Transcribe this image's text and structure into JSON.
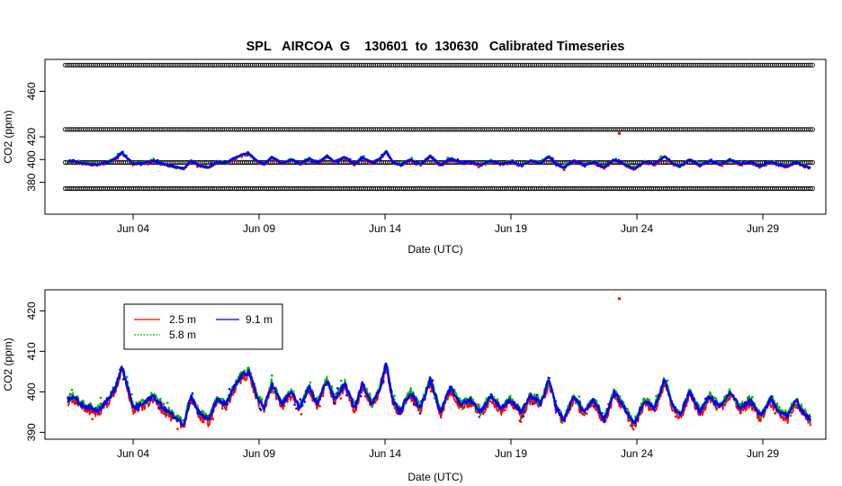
{
  "colors": {
    "reference_points": "#000000",
    "series_2_5m": "#ff0000",
    "series_5_8m": "#00bb00",
    "series_9_1m": "#0000ff",
    "frame": "#000000",
    "background": "#ffffff"
  },
  "chart_data": [
    {
      "type": "scatter",
      "title": "SPL   AIRCOA  G    130601  to  130630   Calibrated Timeseries",
      "xlabel": "Date (UTC)",
      "ylabel": "CO2 (ppm)",
      "xlim_day_of_june": [
        0.5,
        31.5
      ],
      "ylim": [
        352,
        488
      ],
      "x_ticks": [
        {
          "day": 4,
          "label": "Jun 04"
        },
        {
          "day": 9,
          "label": "Jun 09"
        },
        {
          "day": 14,
          "label": "Jun 14"
        },
        {
          "day": 19,
          "label": "Jun 19"
        },
        {
          "day": 24,
          "label": "Jun 24"
        },
        {
          "day": 29,
          "label": "Jun 29"
        }
      ],
      "y_ticks": [
        380,
        400,
        420,
        460
      ],
      "y_tick_labels": [
        "380",
        "400",
        "420",
        "460"
      ],
      "reference_levels_ppm": [
        374.5,
        397.5,
        426.5,
        483
      ],
      "reference_range_days": [
        1.3,
        31.0
      ],
      "ambient_series": [
        "2.5 m",
        "5.8 m",
        "9.1 m"
      ],
      "outliers": [
        {
          "day": 23.3,
          "value": 423
        }
      ]
    },
    {
      "type": "scatter",
      "title": "",
      "xlabel": "Date (UTC)",
      "ylabel": "CO2 (ppm)",
      "xlim_day_of_june": [
        0.5,
        31.5
      ],
      "ylim": [
        388.3,
        425.2
      ],
      "x_ticks": [
        {
          "day": 4,
          "label": "Jun 04"
        },
        {
          "day": 9,
          "label": "Jun 09"
        },
        {
          "day": 14,
          "label": "Jun 14"
        },
        {
          "day": 19,
          "label": "Jun 19"
        },
        {
          "day": 24,
          "label": "Jun 24"
        },
        {
          "day": 29,
          "label": "Jun 29"
        }
      ],
      "y_ticks": [
        390,
        400,
        410,
        420
      ],
      "y_tick_labels": [
        "390",
        "400",
        "410",
        "420"
      ],
      "legend_position": "top-left",
      "legend": [
        {
          "label": "2.5 m",
          "color": "#ff0000"
        },
        {
          "label": "5.8 m",
          "color": "#00bb00"
        },
        {
          "label": "9.1 m",
          "color": "#0000ff"
        }
      ],
      "series_key_points": {
        "day": [
          1.4,
          1.6,
          1.9,
          2.3,
          2.6,
          3.0,
          3.3,
          3.55,
          3.7,
          4.0,
          4.4,
          4.8,
          5.2,
          5.6,
          6.0,
          6.3,
          6.6,
          7.0,
          7.3,
          7.7,
          8.0,
          8.3,
          8.6,
          8.9,
          9.2,
          9.5,
          9.9,
          10.3,
          10.6,
          11.0,
          11.3,
          11.7,
          12.0,
          12.4,
          12.8,
          13.1,
          13.5,
          13.8,
          14.05,
          14.3,
          14.6,
          15.0,
          15.4,
          15.8,
          16.2,
          16.6,
          17.0,
          17.4,
          17.8,
          18.2,
          18.6,
          19.0,
          19.4,
          19.8,
          20.2,
          20.5,
          20.8,
          21.1,
          21.5,
          21.9,
          22.3,
          22.7,
          23.1,
          23.5,
          23.9,
          24.3,
          24.7,
          25.1,
          25.4,
          25.7,
          26.1,
          26.5,
          26.9,
          27.3,
          27.7,
          28.1,
          28.5,
          28.9,
          29.3,
          29.7,
          30.0,
          30.3,
          30.6,
          30.9
        ],
        "value": [
          398,
          399,
          397,
          396,
          395.5,
          398,
          401,
          406,
          403,
          396,
          397,
          399,
          396,
          394,
          392,
          399,
          395,
          393,
          398,
          397,
          401,
          404,
          405,
          399,
          396,
          402,
          397,
          400,
          396,
          401,
          397,
          403,
          398,
          402,
          396,
          402,
          397,
          401,
          407,
          398,
          395,
          400,
          396,
          403,
          395,
          401,
          397,
          398,
          395,
          399,
          396,
          398,
          395,
          399,
          397,
          403,
          396,
          393,
          399,
          395,
          398,
          393,
          400,
          396,
          392,
          398,
          396,
          403,
          397,
          394,
          400,
          395,
          399,
          396,
          400,
          396,
          398,
          394,
          398,
          395,
          394,
          398,
          395,
          393
        ]
      }
    }
  ]
}
